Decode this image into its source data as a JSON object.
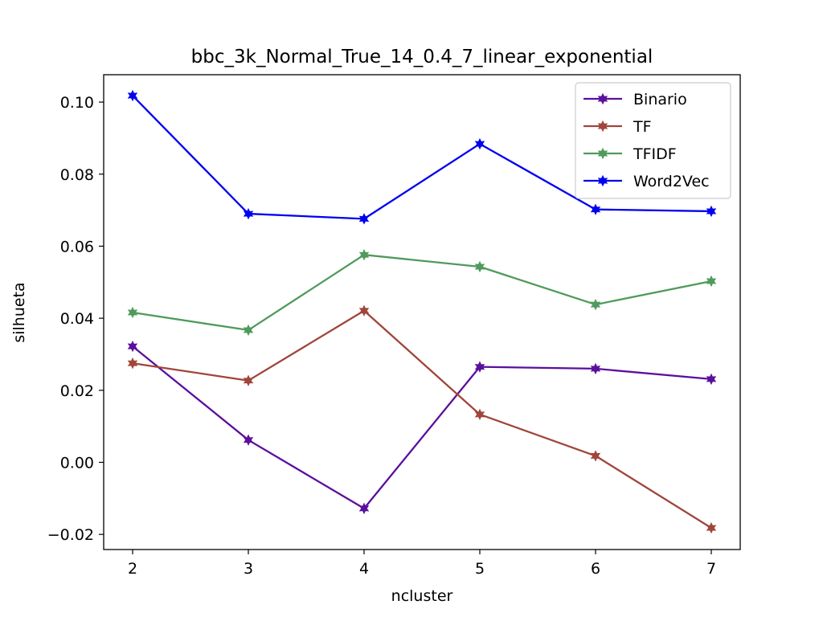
{
  "chart_data": {
    "type": "line",
    "title": "bbc_3k_Normal_True_14_0.4_7_linear_exponential",
    "xlabel": "ncluster",
    "ylabel": "silhueta",
    "x": [
      2,
      3,
      4,
      5,
      6,
      7
    ],
    "xticks": [
      "2",
      "3",
      "4",
      "5",
      "6",
      "7"
    ],
    "xlim": [
      1.75,
      7.25
    ],
    "yticks": [
      "−0.02",
      "0.00",
      "0.02",
      "0.04",
      "0.06",
      "0.08",
      "0.10"
    ],
    "ytick_values": [
      -0.02,
      0.0,
      0.02,
      0.04,
      0.06,
      0.08,
      0.1
    ],
    "ylim": [
      -0.0242,
      0.1076
    ],
    "grid": false,
    "legend_position": "top-right",
    "marker": "star",
    "series": [
      {
        "name": "Binario",
        "color": "#5b0f9d",
        "values": [
          0.0322,
          0.0062,
          -0.0128,
          0.0265,
          0.026,
          0.0231
        ]
      },
      {
        "name": "TF",
        "color": "#a0453a",
        "values": [
          0.0275,
          0.0227,
          0.0421,
          0.0133,
          0.0018,
          -0.0182
        ]
      },
      {
        "name": "TFIDF",
        "color": "#4f9a5c",
        "values": [
          0.0416,
          0.0367,
          0.0576,
          0.0543,
          0.0438,
          0.0503
        ]
      },
      {
        "name": "Word2Vec",
        "color": "#0000f0",
        "values": [
          0.1018,
          0.069,
          0.0676,
          0.0884,
          0.0702,
          0.0697
        ]
      }
    ]
  }
}
